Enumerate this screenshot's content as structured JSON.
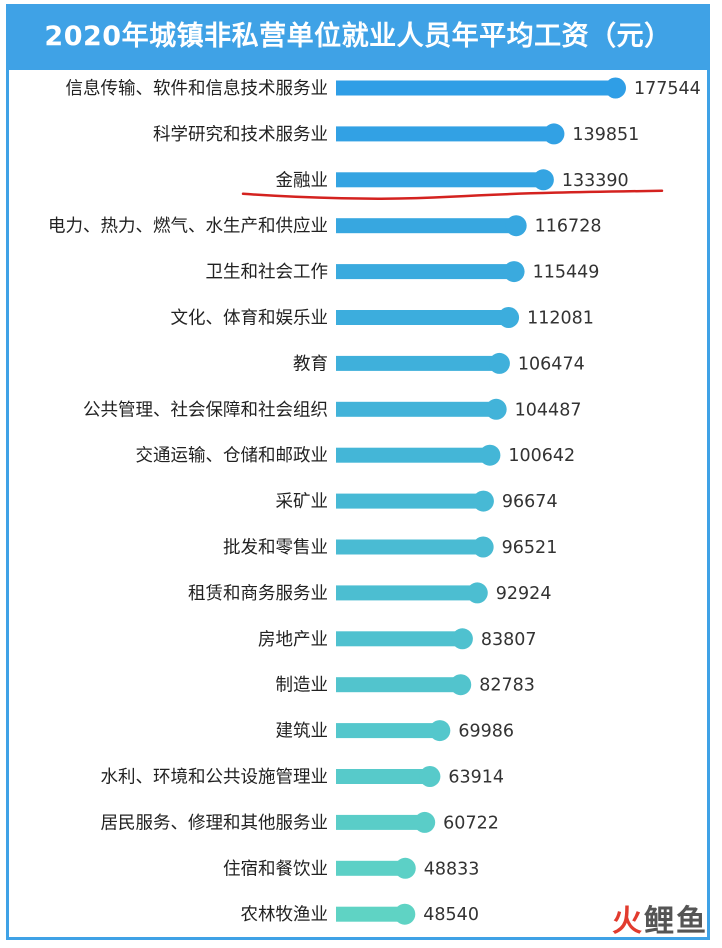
{
  "page": {
    "title": "2020年城镇非私营单位就业人员年平均工资（元）",
    "watermark_prefix": "火",
    "watermark_rest": "鲤鱼"
  },
  "colors": {
    "header": "#3fa2e6",
    "bar_top": "#2f9ee6",
    "bar_bottom": "#5fd3c4",
    "highlight_underline": "#d4221f"
  },
  "chart_data": {
    "type": "bar",
    "orientation": "horizontal",
    "title": "2020年城镇非私营单位就业人员年平均工资（元）",
    "categories": [
      "信息传输、软件和信息技术服务业",
      "科学研究和技术服务业",
      "金融业",
      "电力、热力、燃气、水生产和供应业",
      "卫生和社会工作",
      "文化、体育和娱乐业",
      "教育",
      "公共管理、社会保障和社会组织",
      "交通运输、仓储和邮政业",
      "采矿业",
      "批发和零售业",
      "租赁和商务服务业",
      "房地产业",
      "制造业",
      "建筑业",
      "水利、环境和公共设施管理业",
      "居民服务、修理和其他服务业",
      "住宿和餐饮业",
      "农林牧渔业"
    ],
    "values": [
      177544,
      139851,
      133390,
      116728,
      115449,
      112081,
      106474,
      104487,
      100642,
      96674,
      96521,
      92924,
      83807,
      82783,
      69986,
      63914,
      60722,
      48833,
      48540
    ],
    "value_labels": [
      "177544",
      "139851",
      "133390",
      "116728",
      "115449",
      "112081",
      "106474",
      "104487",
      "100642",
      "96674",
      "96521",
      "92924",
      "83807",
      "82783",
      "69986",
      "63914",
      "60722",
      "48833",
      "48540"
    ],
    "highlighted_category": "金融业",
    "xlim": [
      0,
      177544
    ],
    "grid": false,
    "legend": "none"
  }
}
